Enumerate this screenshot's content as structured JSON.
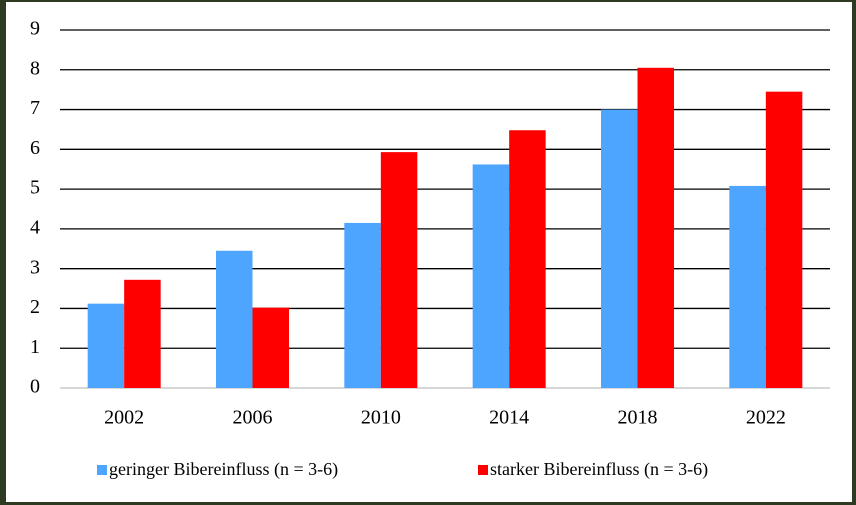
{
  "chart_data": {
    "type": "bar",
    "categories": [
      "2002",
      "2006",
      "2010",
      "2014",
      "2018",
      "2022"
    ],
    "series": [
      {
        "name": "geringer Bibereinfluss (n = 3-6)",
        "color": "#4ea5ff",
        "values": [
          2.12,
          3.45,
          4.15,
          5.62,
          7.0,
          5.08
        ]
      },
      {
        "name": "starker Bibereinfluss (n = 3-6)",
        "color": "#ff0000",
        "values": [
          2.72,
          2.02,
          5.93,
          6.48,
          8.05,
          7.45
        ]
      }
    ],
    "ylim": [
      0,
      9
    ],
    "yticks": [
      0,
      1,
      2,
      3,
      4,
      5,
      6,
      7,
      8,
      9
    ],
    "grid": true,
    "legend": "bottom"
  }
}
